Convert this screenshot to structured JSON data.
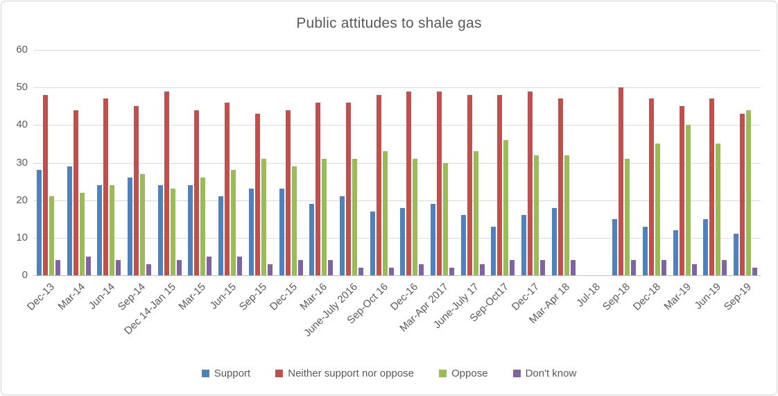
{
  "chart_data": {
    "type": "bar",
    "title": "Public attitudes to shale gas",
    "xlabel": "",
    "ylabel": "",
    "ylim": [
      0,
      60
    ],
    "y_ticks": [
      0,
      10,
      20,
      30,
      40,
      50,
      60
    ],
    "grid": true,
    "legend_position": "bottom",
    "categories": [
      "Dec-13",
      "Mar-14",
      "Jun-14",
      "Sep-14",
      "Dec 14-Jan 15",
      "Mar-15",
      "Jun-15",
      "Sep-15",
      "Dec-15",
      "Mar-16",
      "June-July 2016",
      "Sep-Oct 16",
      "Dec-16",
      "Mar-Apr 2017",
      "June-July 17",
      "Sep-Oct17",
      "Dec-17",
      "Mar-Apr 18",
      "Jul-18",
      "Sep-18",
      "Dec-18",
      "Mar-19",
      "Jun-19",
      "Sep-19"
    ],
    "series": [
      {
        "name": "Support",
        "color": "#4F81BD",
        "values": [
          28,
          29,
          24,
          26,
          24,
          24,
          21,
          23,
          23,
          19,
          21,
          17,
          18,
          19,
          16,
          13,
          16,
          18,
          null,
          15,
          13,
          12,
          15,
          11
        ]
      },
      {
        "name": "Neither support nor oppose",
        "color": "#C0504D",
        "values": [
          48,
          44,
          47,
          45,
          49,
          44,
          46,
          43,
          44,
          46,
          46,
          48,
          49,
          49,
          48,
          48,
          49,
          47,
          null,
          50,
          47,
          45,
          47,
          43
        ]
      },
      {
        "name": "Oppose",
        "color": "#9BBB59",
        "values": [
          21,
          22,
          24,
          27,
          23,
          26,
          28,
          31,
          29,
          31,
          31,
          33,
          31,
          30,
          33,
          36,
          32,
          32,
          null,
          31,
          35,
          40,
          35,
          44
        ]
      },
      {
        "name": "Don't know",
        "color": "#8064A2",
        "values": [
          4,
          5,
          4,
          3,
          4,
          5,
          5,
          3,
          4,
          4,
          2,
          2,
          3,
          2,
          3,
          4,
          4,
          4,
          null,
          4,
          4,
          3,
          4,
          2
        ]
      }
    ]
  },
  "colors": {
    "text": "#595959",
    "gridline": "#D9D9D9",
    "axis_line": "#C3C3C3",
    "frame_border": "#D2D2D2",
    "background": "#FFFFFF"
  }
}
